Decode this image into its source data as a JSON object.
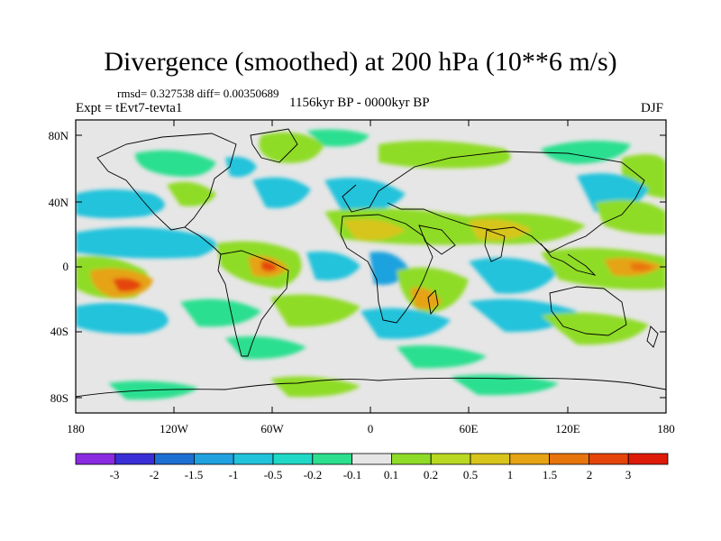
{
  "title": "Divergence (smoothed) at 200 hPa (10**6 m/s)",
  "stats": "rmsd= 0.327538 diff= 0.00350689",
  "experiment": "Expt = tEvt7-tevta1",
  "period": "1156kyr BP - 0000kyr BP",
  "season": "DJF",
  "lat_labels": [
    "80N",
    "40N",
    "0",
    "40S",
    "80S"
  ],
  "lon_labels": [
    "180",
    "120W",
    "60W",
    "0",
    "60E",
    "120E",
    "180"
  ],
  "colorbar": {
    "colors": [
      "#8a2be2",
      "#3a2fd6",
      "#1e6fd2",
      "#1fa2df",
      "#21c3db",
      "#20d8c6",
      "#2bdf8f",
      "#e6e6e6",
      "#8fdc28",
      "#b8d822",
      "#d8c51c",
      "#e6a314",
      "#e8740c",
      "#e5440a",
      "#de1a08"
    ],
    "labels": [
      "-3",
      "-2",
      "-1.5",
      "-1",
      "-0.5",
      "-0.2",
      "-0.1",
      "0.1",
      "0.2",
      "0.5",
      "1",
      "1.5",
      "2",
      "3"
    ]
  }
}
